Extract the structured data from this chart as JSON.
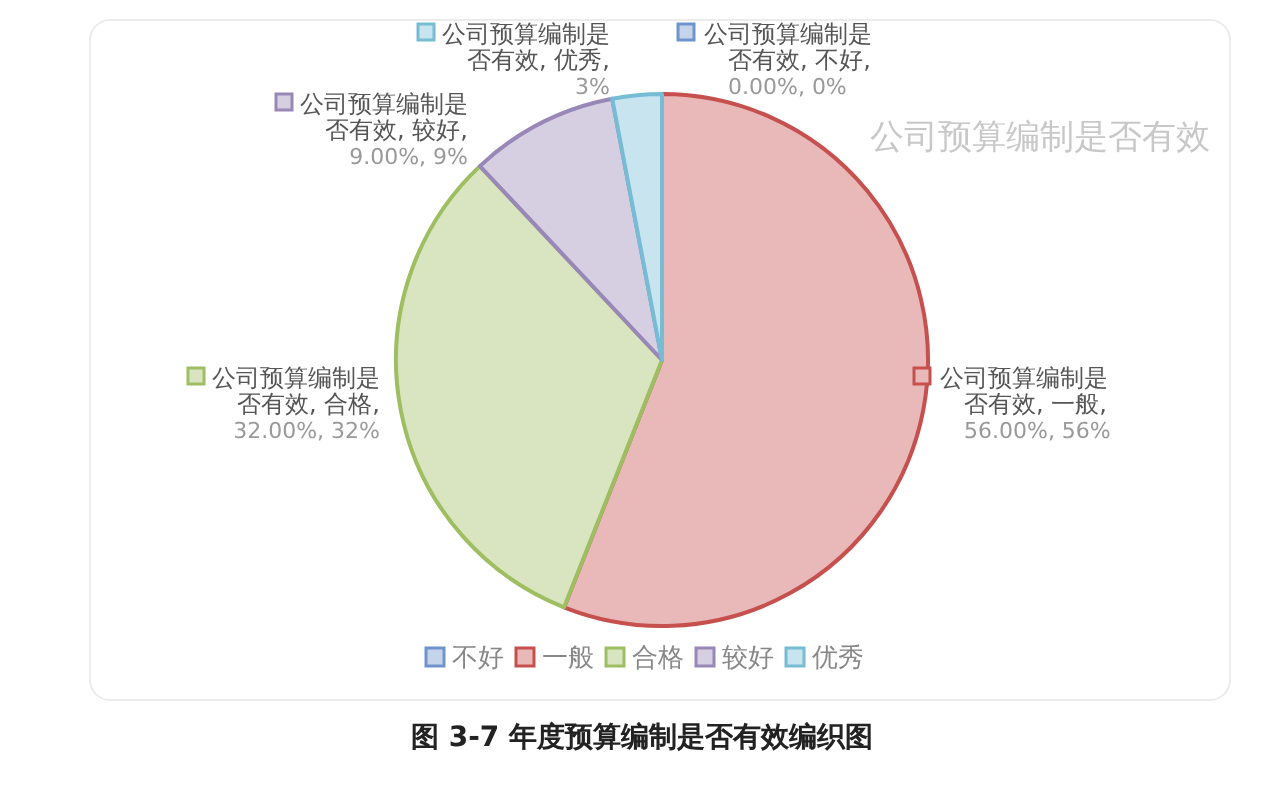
{
  "chart_data": {
    "type": "pie",
    "title": "公司预算编制是否有效",
    "categories": [
      "不好",
      "一般",
      "合格",
      "较好",
      "优秀"
    ],
    "values": [
      0,
      56,
      32,
      9,
      3
    ],
    "colors": [
      "#c5d4ea",
      "#e8b9b8",
      "#d8e5c0",
      "#d6cfe2",
      "#c8e4ee"
    ],
    "value_labels": [
      "公司预算编制是否有效, 不好, 0.00%, 0%",
      "公司预算编制是否有效, 一般, 56.00%, 56%",
      "公司预算编制是否有效, 合格, 32.00%, 32%",
      "公司预算编制是否有效, 较好, 9.00%, 9%",
      "公司预算编制是否有效, 优秀, 3%"
    ],
    "legend": "bottom",
    "annotations": [
      "图 3-7 年度预算编制是否有效编织图"
    ]
  }
}
